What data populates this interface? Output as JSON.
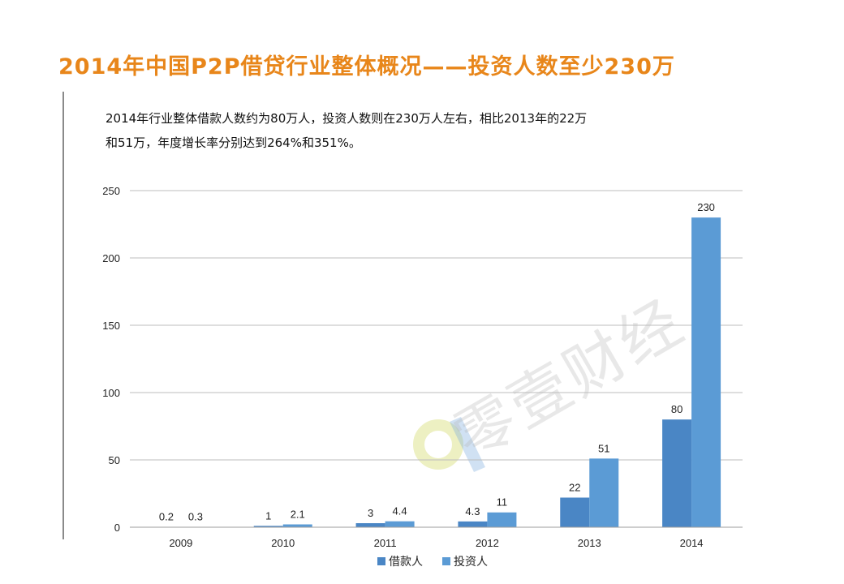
{
  "header": {
    "title": "2014年中国P2P借贷行业整体概况——投资人数至少230万"
  },
  "description": {
    "line1": "2014年行业整体借款人数约为80万人，投资人数则在230万人左右，相比2013年的22万",
    "line2": "和51万，年度增长率分别达到264%和351%。"
  },
  "watermark": {
    "text": "零壹财经"
  },
  "colors": {
    "title": "#e8861a",
    "series_borrower": "#4a86c5",
    "series_investor": "#5b9bd5",
    "grid": "#bdbdbd"
  },
  "chart_data": {
    "type": "bar",
    "categories": [
      "2009",
      "2010",
      "2011",
      "2012",
      "2013",
      "2014"
    ],
    "series": [
      {
        "name": "借款人",
        "values": [
          0.2,
          1,
          3,
          4.3,
          22,
          80
        ],
        "labels": [
          "0.2",
          "1",
          "3",
          "4.3",
          "22",
          "80"
        ]
      },
      {
        "name": "投资人",
        "values": [
          0.3,
          2.1,
          4.4,
          11,
          51,
          230
        ],
        "labels": [
          "0.3",
          "2.1",
          "4.4",
          "11",
          "51",
          "230"
        ]
      }
    ],
    "yticks": [
      0,
      50,
      100,
      150,
      200,
      250
    ],
    "ylim": [
      0,
      250
    ],
    "grid": true,
    "legend_position": "bottom"
  }
}
